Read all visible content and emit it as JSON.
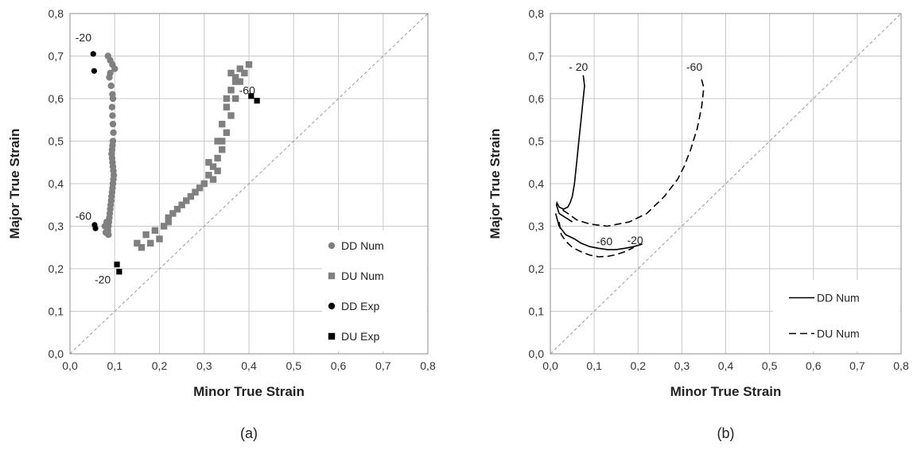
{
  "chart_data": [
    {
      "panel": "(a)",
      "type": "scatter",
      "xlabel": "Minor True Strain",
      "ylabel": "Major True Strain",
      "xlim": [
        0,
        0.8
      ],
      "ylim": [
        0,
        0.8
      ],
      "x_ticks": [
        "0,0",
        "0,1",
        "0,2",
        "0,3",
        "0,4",
        "0,5",
        "0,6",
        "0,7",
        "0,8"
      ],
      "y_ticks": [
        "0,0",
        "0,1",
        "0,2",
        "0,3",
        "0,4",
        "0,5",
        "0,6",
        "0,7",
        "0,8"
      ],
      "grid": true,
      "legend_position": "bottom-right",
      "reference_line": "y = x (dashed)",
      "series": [
        {
          "name": "DD Num",
          "marker": "circle",
          "color": "#808080",
          "x": [
            0.085,
            0.09,
            0.095,
            0.1,
            0.09,
            0.088,
            0.092,
            0.095,
            0.096,
            0.094,
            0.095,
            0.096,
            0.097,
            0.096,
            0.095,
            0.094,
            0.093,
            0.094,
            0.095,
            0.096,
            0.097,
            0.098,
            0.097,
            0.096,
            0.095,
            0.094,
            0.093,
            0.092,
            0.091,
            0.09,
            0.089,
            0.088,
            0.087,
            0.086,
            0.085,
            0.08,
            0.078,
            0.082,
            0.086
          ],
          "y": [
            0.7,
            0.69,
            0.68,
            0.67,
            0.66,
            0.65,
            0.63,
            0.61,
            0.6,
            0.58,
            0.56,
            0.54,
            0.52,
            0.5,
            0.49,
            0.48,
            0.47,
            0.46,
            0.45,
            0.44,
            0.43,
            0.42,
            0.41,
            0.4,
            0.39,
            0.38,
            0.37,
            0.36,
            0.35,
            0.34,
            0.33,
            0.32,
            0.31,
            0.3,
            0.29,
            0.285,
            0.3,
            0.31,
            0.28
          ]
        },
        {
          "name": "DU Num",
          "marker": "square",
          "color": "#808080",
          "x": [
            0.15,
            0.16,
            0.18,
            0.2,
            0.17,
            0.19,
            0.21,
            0.22,
            0.23,
            0.24,
            0.25,
            0.22,
            0.26,
            0.27,
            0.28,
            0.29,
            0.3,
            0.31,
            0.32,
            0.31,
            0.33,
            0.34,
            0.33,
            0.35,
            0.34,
            0.36,
            0.35,
            0.37,
            0.36,
            0.38,
            0.37,
            0.39,
            0.38,
            0.4,
            0.36,
            0.34,
            0.33,
            0.32,
            0.35,
            0.37
          ],
          "y": [
            0.26,
            0.25,
            0.26,
            0.27,
            0.28,
            0.29,
            0.3,
            0.32,
            0.33,
            0.34,
            0.35,
            0.31,
            0.36,
            0.37,
            0.38,
            0.39,
            0.4,
            0.42,
            0.44,
            0.45,
            0.46,
            0.48,
            0.5,
            0.52,
            0.54,
            0.56,
            0.58,
            0.6,
            0.62,
            0.64,
            0.65,
            0.66,
            0.67,
            0.68,
            0.66,
            0.5,
            0.43,
            0.41,
            0.6,
            0.64
          ]
        },
        {
          "name": "DD Exp",
          "marker": "circle",
          "color": "#000000",
          "x": [
            0.052,
            0.054,
            0.055,
            0.057
          ],
          "y": [
            0.705,
            0.665,
            0.303,
            0.295
          ]
        },
        {
          "name": "DU Exp",
          "marker": "square",
          "color": "#000000",
          "x": [
            0.105,
            0.11,
            0.405,
            0.418
          ],
          "y": [
            0.21,
            0.193,
            0.606,
            0.595
          ]
        }
      ],
      "annotations": [
        {
          "text": "-20",
          "x": 0.012,
          "y": 0.735
        },
        {
          "text": "-60",
          "x": 0.378,
          "y": 0.61
        },
        {
          "text": "-60",
          "x": 0.012,
          "y": 0.315
        },
        {
          "text": "-20",
          "x": 0.055,
          "y": 0.165
        }
      ]
    },
    {
      "panel": "(b)",
      "type": "line",
      "xlabel": "Minor True Strain",
      "ylabel": "Major True Strain",
      "xlim": [
        0,
        0.8
      ],
      "ylim": [
        0,
        0.8
      ],
      "x_ticks": [
        "0,0",
        "0,1",
        "0,2",
        "0,3",
        "0,4",
        "0,5",
        "0,6",
        "0,7",
        "0,8"
      ],
      "y_ticks": [
        "0,0",
        "0,1",
        "0,2",
        "0,3",
        "0,4",
        "0,5",
        "0,6",
        "0,7",
        "0,8"
      ],
      "grid": true,
      "legend_position": "bottom-right",
      "reference_line": "y = x (dashed)",
      "series": [
        {
          "name": "DD Num",
          "style": "solid",
          "color": "#000000",
          "curves": [
            {
              "x": [
                0.075,
                0.078,
                0.075,
                0.07,
                0.065,
                0.06,
                0.055,
                0.05,
                0.045,
                0.04,
                0.03,
                0.02,
                0.015,
                0.014,
                0.02,
                0.035,
                0.05
              ],
              "y": [
                0.655,
                0.63,
                0.6,
                0.55,
                0.5,
                0.45,
                0.4,
                0.37,
                0.355,
                0.345,
                0.34,
                0.345,
                0.355,
                0.35,
                0.33,
                0.32,
                0.31
              ]
            },
            {
              "x": [
                0.012,
                0.02,
                0.035,
                0.055,
                0.07,
                0.09,
                0.11,
                0.13,
                0.15,
                0.17,
                0.19,
                0.21
              ],
              "y": [
                0.33,
                0.3,
                0.28,
                0.27,
                0.26,
                0.252,
                0.248,
                0.245,
                0.245,
                0.248,
                0.252,
                0.258
              ]
            }
          ]
        },
        {
          "name": "DU Num",
          "style": "dashed",
          "color": "#000000",
          "curves": [
            {
              "x": [
                0.345,
                0.35,
                0.345,
                0.335,
                0.32,
                0.305,
                0.29,
                0.26,
                0.22,
                0.18,
                0.13,
                0.09,
                0.06,
                0.04,
                0.025
              ],
              "y": [
                0.645,
                0.625,
                0.58,
                0.53,
                0.48,
                0.44,
                0.41,
                0.37,
                0.33,
                0.31,
                0.3,
                0.305,
                0.315,
                0.33,
                0.34
              ]
            },
            {
              "x": [
                0.02,
                0.025,
                0.035,
                0.05,
                0.07,
                0.09,
                0.11,
                0.13,
                0.15,
                0.17,
                0.19
              ],
              "y": [
                0.31,
                0.28,
                0.265,
                0.25,
                0.24,
                0.232,
                0.228,
                0.229,
                0.233,
                0.24,
                0.25
              ]
            }
          ]
        }
      ],
      "annotations": [
        {
          "text": "- 20",
          "x": 0.042,
          "y": 0.665
        },
        {
          "text": "-60",
          "x": 0.31,
          "y": 0.665
        },
        {
          "text": "-60",
          "x": 0.105,
          "y": 0.255
        },
        {
          "text": "-20",
          "x": 0.175,
          "y": 0.258
        }
      ]
    }
  ]
}
